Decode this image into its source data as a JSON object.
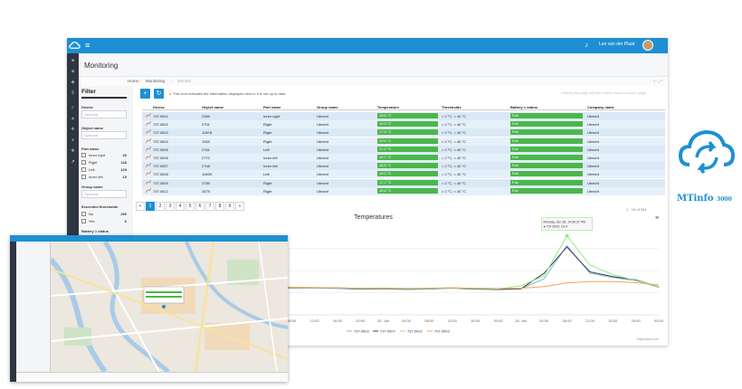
{
  "app": {
    "page_title": "Monitoring",
    "menu_icon": "hamburger-icon",
    "user_name": "Leo van der Plaat",
    "breadcrumb": [
      "Home",
      "Monitoring",
      "Monitor"
    ],
    "zoom": "+ - ⤢",
    "notice": "This icon indicates the information displayed next to it is not up to date.",
    "hint": "Directly the page will then match found a closer page",
    "page_count": "1 - 10 of 204",
    "brand": {
      "name": "MTinfo",
      "suffix": "3000",
      "color": "#1e8fd3"
    }
  },
  "filter": {
    "title": "Filter",
    "device_label": "Device",
    "device_placeholder": "Optional",
    "object_label": "Object name",
    "object_placeholder": "Optional",
    "part_label": "Part name",
    "parts": [
      {
        "label": "Inner right",
        "count": "20"
      },
      {
        "label": "Right",
        "count": "128"
      },
      {
        "label": "Left",
        "count": "129"
      },
      {
        "label": "Inner left",
        "count": "19"
      }
    ],
    "group_label": "Group name",
    "group_placeholder": "Optional",
    "exceeded_label": "Exceeded thresholds",
    "exceeded": [
      {
        "label": "No",
        "count": "290"
      },
      {
        "label": "Yes",
        "count": "6"
      }
    ],
    "battery_label": "Battery 1 status"
  },
  "table": {
    "columns": [
      "Device",
      "Object name",
      "Part name",
      "Group name",
      "Temperature",
      "Thresholds",
      "Battery 1 status",
      "Company name"
    ],
    "rows": [
      [
        "737.0001",
        "2359",
        "Inner right",
        "Utrecht",
        "19.6 °C",
        "> 2 °C, < 40 °C",
        "Full",
        "Utrecht"
      ],
      [
        "737.0002",
        "2701",
        "Right",
        "Utrecht",
        "19.9 °C",
        "> 2 °C, < 40 °C",
        "Full",
        "Utrecht"
      ],
      [
        "737.0003",
        "10678",
        "Right",
        "Utrecht",
        "17.5 °C",
        "> 2 °C, < 40 °C",
        "Full",
        "Utrecht"
      ],
      [
        "737.0004",
        "1063",
        "Right",
        "Utrecht",
        "19.4 °C",
        "> 2 °C, < 40 °C",
        "Full",
        "Utrecht"
      ],
      [
        "737.0005",
        "2761",
        "Left",
        "Utrecht",
        "17.2 °C",
        "> 2 °C, < 40 °C",
        "Full",
        "Utrecht"
      ],
      [
        "737.0006",
        "2772",
        "Inner left",
        "Utrecht",
        "16.7 °C",
        "> 2 °C, < 40 °C",
        "Full",
        "Utrecht"
      ],
      [
        "737.0007",
        "2748",
        "Inner left",
        "Utrecht",
        "18.5 °C",
        "> 2 °C, < 40 °C",
        "Full",
        "Utrecht"
      ],
      [
        "737.0008",
        "10639",
        "Left",
        "Utrecht",
        "19.2 °C",
        "> 2 °C, < 40 °C",
        "Full",
        "Utrecht"
      ],
      [
        "737.0009",
        "2789",
        "Right",
        "Utrecht",
        "17.7 °C",
        "> 2 °C, < 40 °C",
        "Full",
        "Utrecht"
      ],
      [
        "737.0012",
        "2675",
        "Right",
        "Utrecht",
        "18.4 °C",
        "> 2 °C, < 40 °C",
        "Full",
        "Utrecht"
      ]
    ],
    "temp_color": "#4bb74b"
  },
  "pager": {
    "prev": "«",
    "pages": [
      "1",
      "2",
      "3",
      "4",
      "5",
      "6",
      "7",
      "8",
      "9"
    ],
    "next": "»",
    "active": "1"
  },
  "chart_data": {
    "type": "line",
    "title": "Temperatures",
    "x": [
      "08:00",
      "12:00",
      "16:00",
      "20:00",
      "24. Jun",
      "04:00",
      "08:00",
      "12:00",
      "16:00",
      "20:00",
      "25. Jun",
      "04:00",
      "08:00",
      "12:00",
      "16:00",
      "20:00",
      "26. Jun",
      "04:00",
      "08:00",
      "12:00",
      "16:00",
      "20:00",
      "00:00"
    ],
    "grid": true,
    "legend_position": "bottom",
    "tooltip": {
      "title": "Monday, Jun 26, 14:35:37 PM",
      "text": "● 737.0002: 23.4"
    },
    "credits": "Highcharts.com",
    "series": [
      {
        "name": "737.0003",
        "color": "#7cb5ec",
        "values": [
          10,
          9.6,
          9.5,
          9.6,
          10,
          9.8,
          9.6,
          9.6,
          9.5,
          9.2,
          9.4,
          9.1,
          9.3,
          9.6,
          9.2,
          9,
          9.4,
          13,
          25,
          15,
          13.5,
          12.3,
          10
        ]
      },
      {
        "name": "737.0007",
        "color": "#434348",
        "values": [
          10.3,
          9.8,
          9.8,
          9.9,
          10.2,
          10,
          9.9,
          9.8,
          9.7,
          9.4,
          9.5,
          9.3,
          9.5,
          9.7,
          9.4,
          9.2,
          9.4,
          15,
          24.5,
          15.5,
          13.8,
          12.6,
          10.1
        ]
      },
      {
        "name": "737.0002",
        "color": "#90ed7d",
        "values": [
          10.1,
          9.9,
          10,
          10,
          10.4,
          10.1,
          10,
          9.9,
          9.8,
          9.5,
          9.7,
          9.4,
          9.6,
          9.8,
          9.5,
          9.3,
          10.5,
          14,
          28.5,
          18,
          14.5,
          12.4,
          10.2
        ]
      },
      {
        "name": "737.0003",
        "color": "#f7a35c",
        "values": [
          10,
          9.9,
          9.9,
          10,
          10.1,
          10,
          9.9,
          9.8,
          9.7,
          9.6,
          9.6,
          9.5,
          9.6,
          9.7,
          9.6,
          9.5,
          9.6,
          10.2,
          11.5,
          12,
          12,
          11.6,
          10.8
        ]
      }
    ],
    "ylim": [
      0,
      32
    ]
  }
}
